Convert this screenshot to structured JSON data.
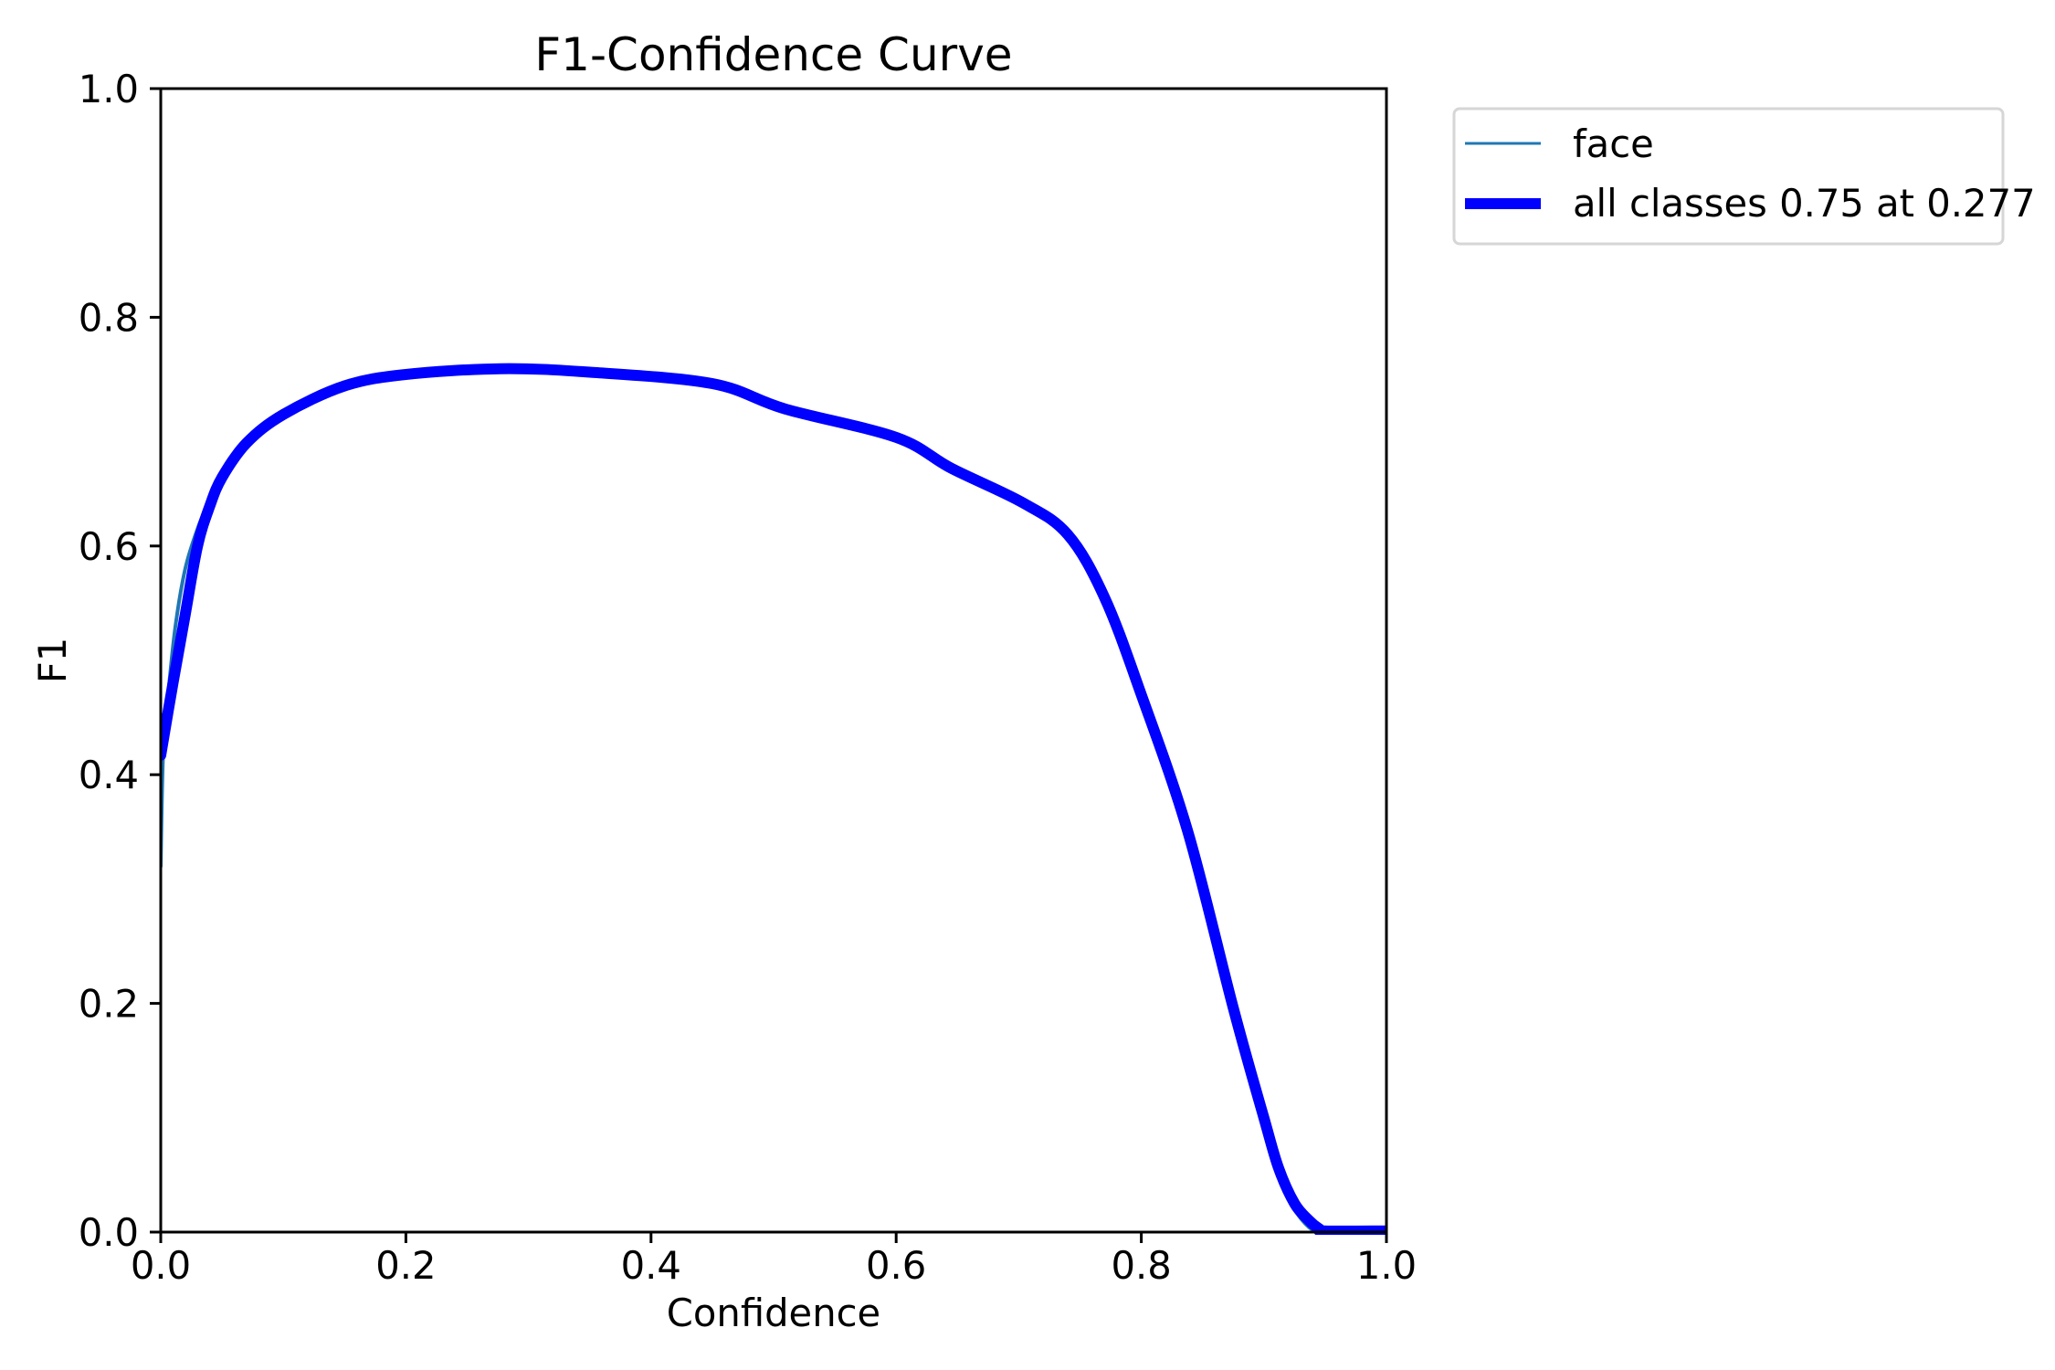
{
  "chart_data": {
    "type": "line",
    "title": "F1-Confidence Curve",
    "xlabel": "Confidence",
    "ylabel": "F1",
    "xlim": [
      0.0,
      1.0
    ],
    "ylim": [
      0.0,
      1.0
    ],
    "xticks": [
      "0.0",
      "0.2",
      "0.4",
      "0.6",
      "0.8",
      "1.0"
    ],
    "yticks": [
      "0.0",
      "0.2",
      "0.4",
      "0.6",
      "0.8",
      "1.0"
    ],
    "grid": false,
    "legend_position": "outside upper right",
    "series": [
      {
        "name": "face",
        "color": "#1f77b4",
        "line_width": 1.5,
        "x": [
          0.0,
          0.002,
          0.006,
          0.012,
          0.02,
          0.03,
          0.04,
          0.05,
          0.07,
          0.1,
          0.15,
          0.2,
          0.277,
          0.35,
          0.45,
          0.509,
          0.6,
          0.645,
          0.703,
          0.74,
          0.77,
          0.8,
          0.838,
          0.875,
          0.9,
          0.912,
          0.925,
          0.937,
          0.945,
          0.95,
          1.0
        ],
        "y": [
          0.32,
          0.42,
          0.47,
          0.53,
          0.58,
          0.615,
          0.64,
          0.66,
          0.69,
          0.715,
          0.74,
          0.75,
          0.755,
          0.752,
          0.742,
          0.72,
          0.695,
          0.668,
          0.638,
          0.61,
          0.555,
          0.47,
          0.35,
          0.196,
          0.1,
          0.05,
          0.02,
          0.004,
          0.001,
          0.001,
          0.001
        ]
      },
      {
        "name": "all classes 0.75 at 0.277",
        "color": "#0000ff",
        "line_width": 3,
        "x": [
          0.0,
          0.01,
          0.02,
          0.03,
          0.04,
          0.05,
          0.07,
          0.1,
          0.15,
          0.2,
          0.277,
          0.35,
          0.45,
          0.509,
          0.6,
          0.645,
          0.703,
          0.74,
          0.77,
          0.8,
          0.838,
          0.875,
          0.9,
          0.912,
          0.925,
          0.937,
          0.945,
          0.95,
          1.0
        ],
        "y": [
          0.417,
          0.48,
          0.54,
          0.6,
          0.635,
          0.66,
          0.69,
          0.715,
          0.74,
          0.75,
          0.755,
          0.752,
          0.742,
          0.72,
          0.695,
          0.668,
          0.638,
          0.61,
          0.555,
          0.47,
          0.35,
          0.196,
          0.1,
          0.056,
          0.025,
          0.01,
          0.003,
          0.001,
          0.001
        ]
      }
    ],
    "legend": [
      {
        "label": "face",
        "color": "#1f77b4"
      },
      {
        "label": "all classes 0.75 at 0.277",
        "color": "#0000ff"
      }
    ],
    "annotations": [
      {
        "text": "all classes 0.75 at 0.277",
        "best_f1": 0.75,
        "at_confidence": 0.277
      }
    ]
  }
}
